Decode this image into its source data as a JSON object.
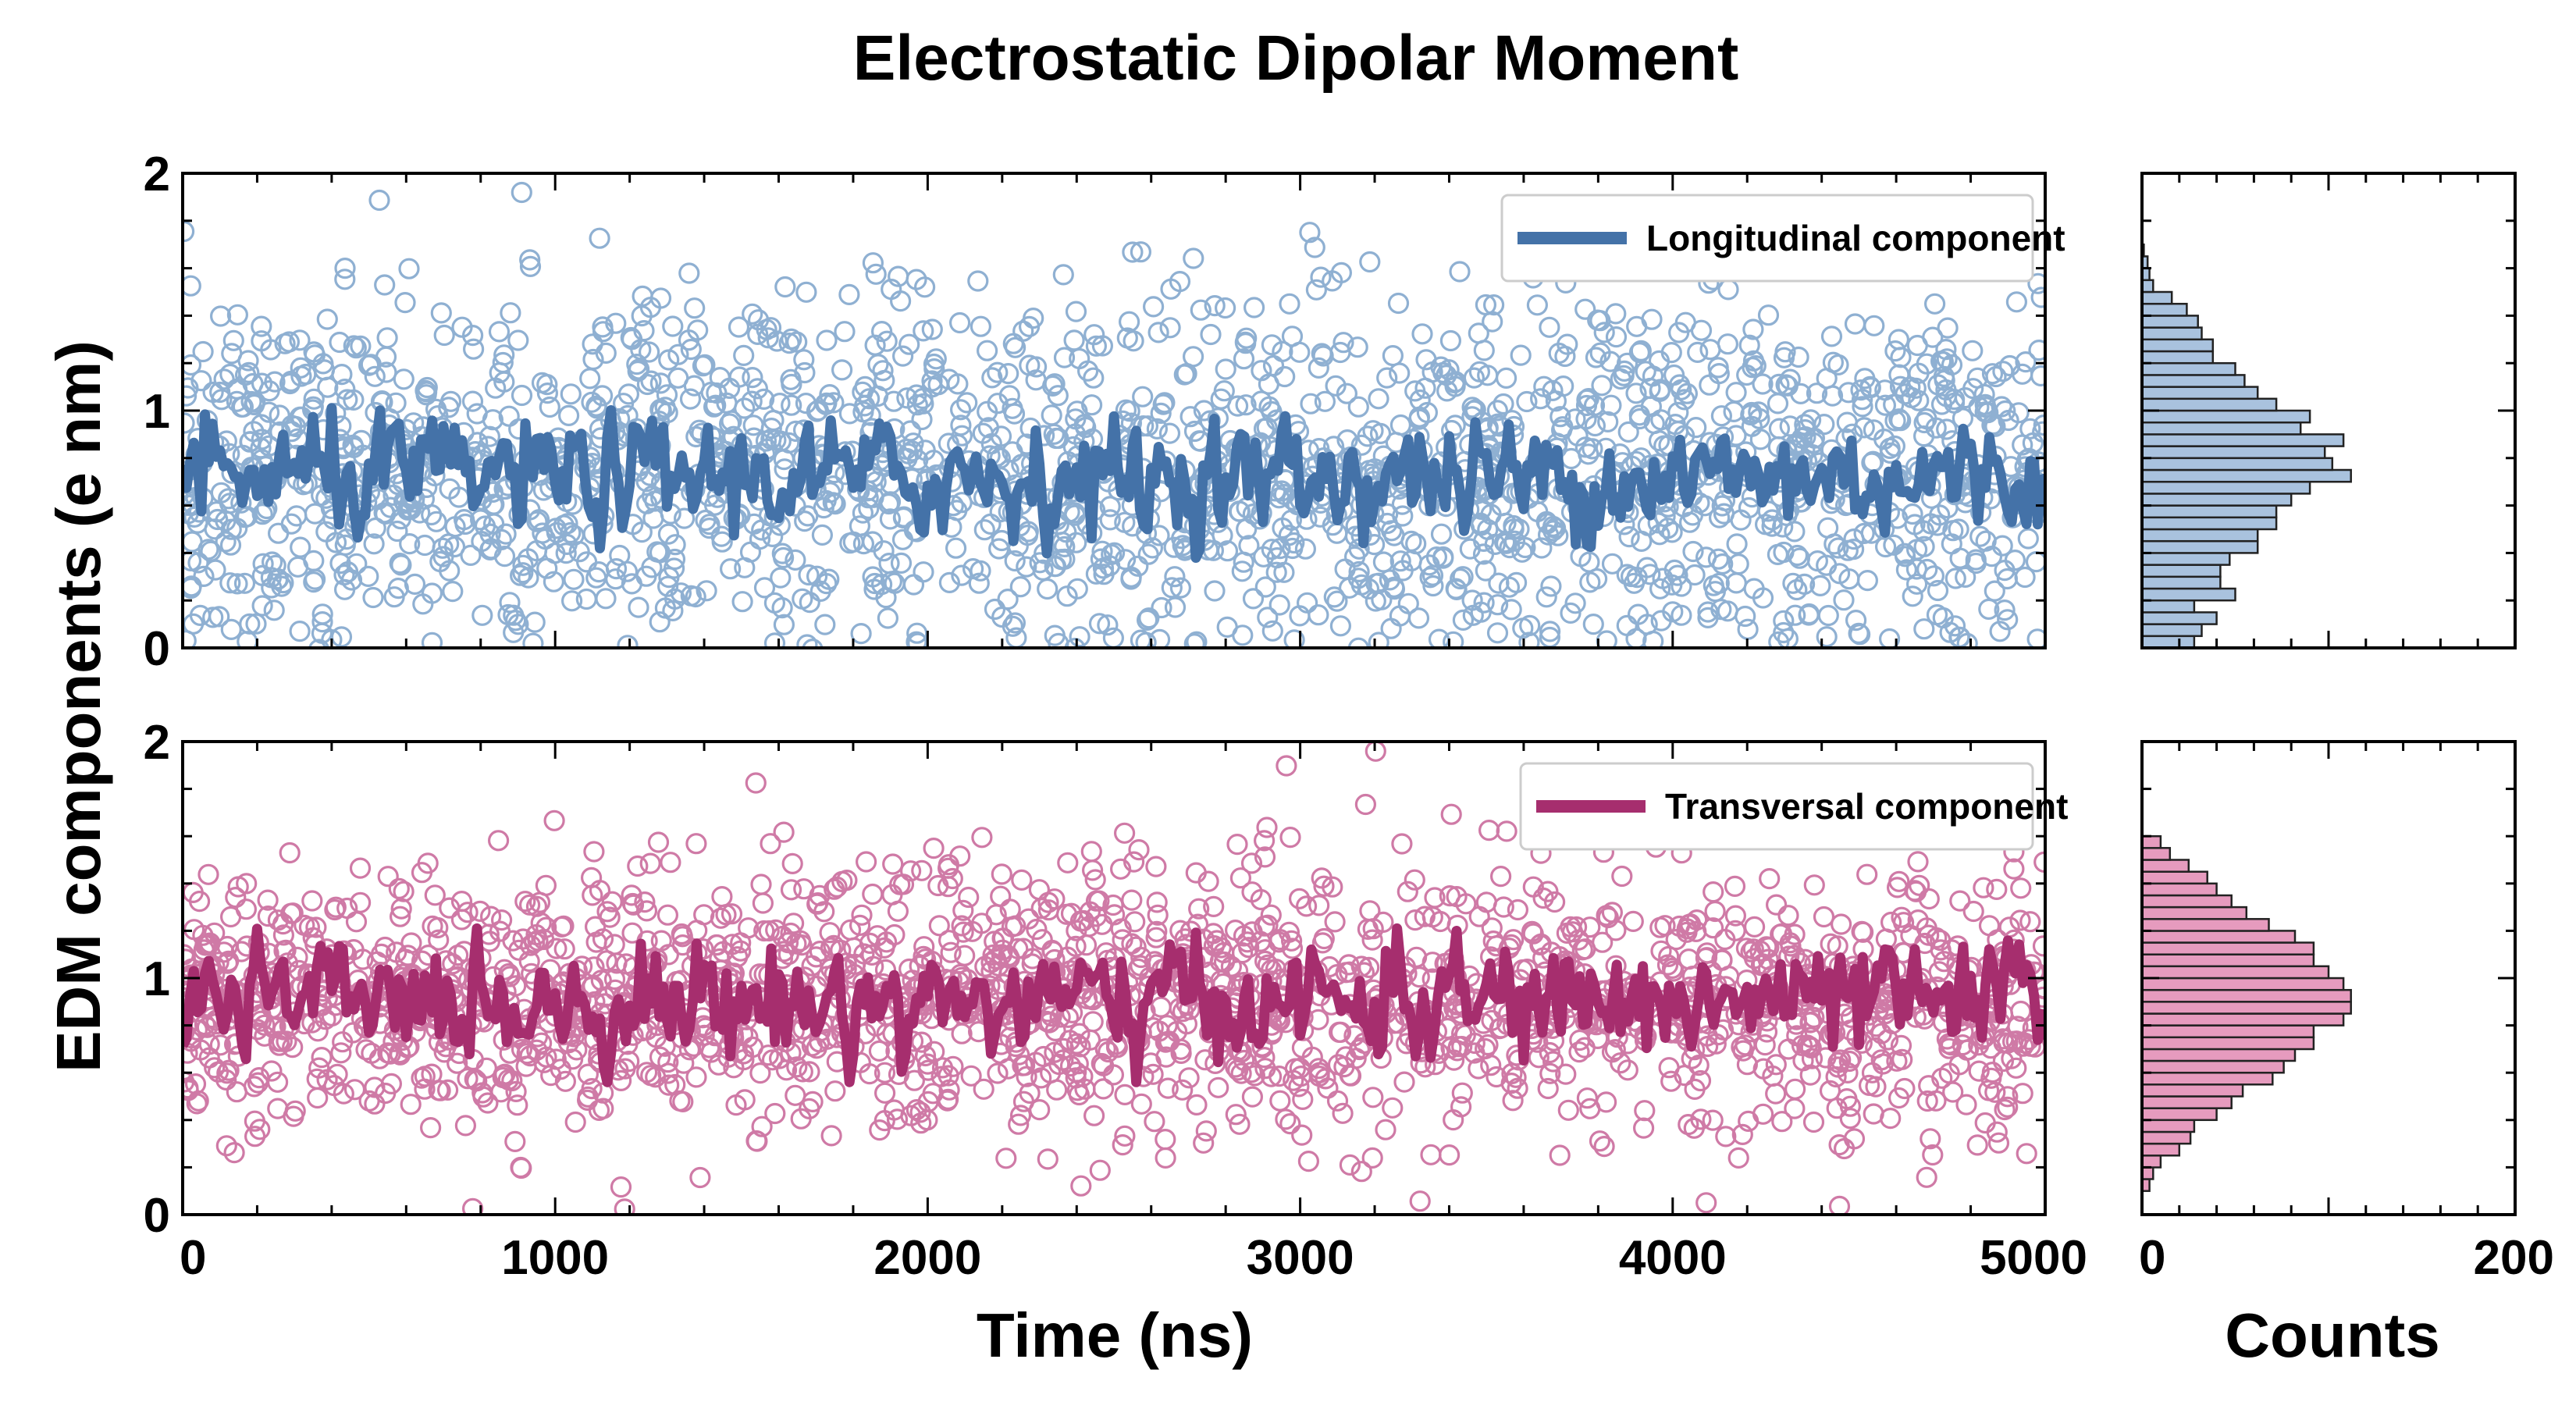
{
  "chart_data": {
    "type": "scatter",
    "title": "Electrostatic Dipolar Moment",
    "ylabel": "EDM components (e nm)",
    "xlabel": "Time (ns)",
    "hist_xlabel": "Counts",
    "xlim": [
      0,
      5000
    ],
    "ylim": [
      0,
      2
    ],
    "x_ticks": [
      "0",
      "1000",
      "2000",
      "3000",
      "4000",
      "5000"
    ],
    "y_ticks": [
      "0",
      "1",
      "2"
    ],
    "hist_xlim": [
      0,
      200
    ],
    "hist_ticks": [
      "0",
      "200"
    ],
    "panels": [
      {
        "name": "Longitudinal component",
        "legend_label": "Longitudinal component",
        "legend_position": "top-right",
        "color": "#4472a8",
        "marker_color": "#8fb0d2",
        "hist_fill": "#a9c2de",
        "scatter_mean": 0.72,
        "scatter_std": 0.38,
        "running_mean_center": 0.72,
        "running_mean_range": [
          0.38,
          1.12
        ],
        "histogram": {
          "bin_edges": [
            0.0,
            0.05,
            0.1,
            0.15,
            0.2,
            0.25,
            0.3,
            0.35,
            0.4,
            0.45,
            0.5,
            0.55,
            0.6,
            0.65,
            0.7,
            0.75,
            0.8,
            0.85,
            0.9,
            0.95,
            1.0,
            1.05,
            1.1,
            1.15,
            1.2,
            1.25,
            1.3,
            1.35,
            1.4,
            1.45,
            1.5,
            1.55,
            1.6,
            1.65,
            1.7
          ],
          "counts": [
            28,
            32,
            40,
            28,
            50,
            42,
            42,
            47,
            62,
            62,
            72,
            72,
            80,
            90,
            112,
            102,
            98,
            108,
            85,
            90,
            72,
            62,
            55,
            50,
            38,
            38,
            32,
            30,
            24,
            16,
            6,
            4,
            3,
            1
          ]
        }
      },
      {
        "name": "Transversal component",
        "legend_label": "Transversal component",
        "legend_position": "top-right",
        "color": "#a62e6e",
        "marker_color": "#cf7aa6",
        "hist_fill": "#e69bbe",
        "scatter_mean": 0.9,
        "scatter_std": 0.28,
        "running_mean_center": 0.9,
        "running_mean_range": [
          0.56,
          1.21
        ],
        "histogram": {
          "bin_edges": [
            0.1,
            0.15,
            0.2,
            0.25,
            0.3,
            0.35,
            0.4,
            0.45,
            0.5,
            0.55,
            0.6,
            0.65,
            0.7,
            0.75,
            0.8,
            0.85,
            0.9,
            0.95,
            1.0,
            1.05,
            1.1,
            1.15,
            1.2,
            1.25,
            1.3,
            1.35,
            1.4,
            1.45,
            1.5,
            1.55,
            1.6
          ],
          "counts": [
            4,
            6,
            10,
            20,
            26,
            28,
            40,
            48,
            54,
            70,
            76,
            82,
            92,
            92,
            108,
            112,
            112,
            108,
            100,
            92,
            92,
            82,
            68,
            56,
            48,
            40,
            35,
            25,
            15,
            10
          ]
        }
      }
    ]
  }
}
